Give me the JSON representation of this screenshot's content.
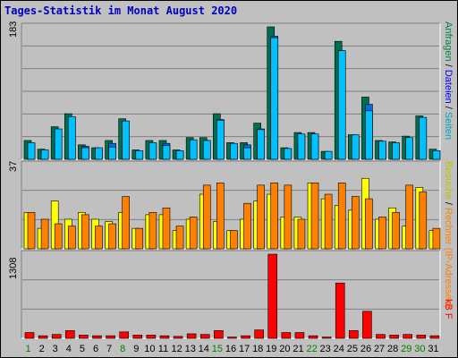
{
  "title": "Tages-Statistik im Monat August 2020",
  "colors": {
    "background": "#c0c0c0",
    "title": "#0000c0",
    "weekday": "#000000",
    "weekend": "#008000",
    "hits": "#006f4f",
    "files": "#0070e0",
    "pages": "#00c0ff",
    "visits": "#ffff00",
    "sites": "#ff8000",
    "kbytes": "#ff0000"
  },
  "right_labels": {
    "top": [
      {
        "text": "Anfragen",
        "color": "#008040"
      },
      {
        "text": " / ",
        "color": "#000000"
      },
      {
        "text": "Dateien",
        "color": "#0000ff"
      },
      {
        "text": " / ",
        "color": "#000000"
      },
      {
        "text": "Seiten",
        "color": "#00a0c0"
      }
    ],
    "middle": [
      {
        "text": "Besuche",
        "color": "#c0c000"
      },
      {
        "text": " / ",
        "color": "#000000"
      },
      {
        "text": "Rechner (IP-Adressen)",
        "color": "#ff8000"
      }
    ],
    "bottom": [
      {
        "text": "kB F",
        "color": "#ff0000"
      }
    ]
  },
  "chart_data": [
    {
      "type": "bar",
      "panel": "requests",
      "ymax_label": "183",
      "ylim": [
        0,
        183
      ],
      "x": [
        "1",
        "2",
        "3",
        "4",
        "5",
        "6",
        "7",
        "8",
        "9",
        "10",
        "11",
        "12",
        "13",
        "14",
        "15",
        "16",
        "17",
        "18",
        "19",
        "20",
        "21",
        "22",
        "23",
        "24",
        "25",
        "26",
        "27",
        "28",
        "29",
        "30",
        "31"
      ],
      "weekend_days": [
        1,
        8,
        15,
        22,
        29,
        30
      ],
      "series": [
        {
          "values": [
            26,
            14,
            45,
            63,
            20,
            16,
            26,
            56,
            13,
            26,
            26,
            13,
            30,
            30,
            63,
            23,
            23,
            50,
            183,
            16,
            37,
            37,
            11,
            163,
            34,
            86,
            26,
            24,
            32,
            60,
            14
          ]
        },
        {
          "values": [
            22,
            12,
            40,
            58,
            18,
            14,
            22,
            50,
            11,
            22,
            22,
            11,
            26,
            26,
            55,
            20,
            20,
            42,
            170,
            14,
            33,
            33,
            10,
            150,
            30,
            76,
            22,
            21,
            28,
            54,
            12
          ]
        },
        {
          "values": [
            23,
            13,
            42,
            59,
            16,
            16,
            17,
            53,
            12,
            23,
            19,
            12,
            27,
            26,
            54,
            22,
            16,
            41,
            168,
            15,
            35,
            35,
            11,
            150,
            34,
            67,
            25,
            23,
            30,
            58,
            12
          ]
        }
      ]
    },
    {
      "type": "bar",
      "panel": "visits",
      "ymax_label": "37",
      "ylim": [
        0,
        37
      ],
      "x": [
        "1",
        "2",
        "3",
        "4",
        "5",
        "6",
        "7",
        "8",
        "9",
        "10",
        "11",
        "12",
        "13",
        "14",
        "15",
        "16",
        "17",
        "18",
        "19",
        "20",
        "21",
        "22",
        "23",
        "24",
        "25",
        "26",
        "27",
        "28",
        "29",
        "30",
        "31"
      ],
      "series": [
        {
          "values": [
            16,
            9,
            21,
            13,
            16,
            13,
            12,
            16,
            9,
            15,
            15,
            8,
            13,
            24,
            12,
            8,
            13,
            21,
            24,
            14,
            14,
            29,
            22,
            19,
            17,
            31,
            13,
            18,
            10,
            27,
            8
          ]
        },
        {
          "values": [
            16,
            13,
            11,
            10,
            15,
            10,
            11,
            23,
            9,
            16,
            18,
            10,
            14,
            28,
            29,
            8,
            20,
            28,
            29,
            28,
            13,
            29,
            24,
            29,
            23,
            22,
            14,
            16,
            28,
            25,
            9
          ]
        }
      ]
    },
    {
      "type": "bar",
      "panel": "kbytes",
      "ymax_label": "1308",
      "ylim": [
        0,
        1308
      ],
      "x": [
        "1",
        "2",
        "3",
        "4",
        "5",
        "6",
        "7",
        "8",
        "9",
        "10",
        "11",
        "12",
        "13",
        "14",
        "15",
        "16",
        "17",
        "18",
        "19",
        "20",
        "21",
        "22",
        "23",
        "24",
        "25",
        "26",
        "27",
        "28",
        "29",
        "30",
        "31"
      ],
      "series": [
        {
          "values": [
            90,
            40,
            60,
            120,
            50,
            40,
            40,
            100,
            50,
            50,
            40,
            30,
            70,
            60,
            120,
            20,
            40,
            130,
            1308,
            90,
            90,
            40,
            20,
            860,
            120,
            420,
            60,
            50,
            60,
            50,
            40
          ]
        }
      ]
    }
  ]
}
